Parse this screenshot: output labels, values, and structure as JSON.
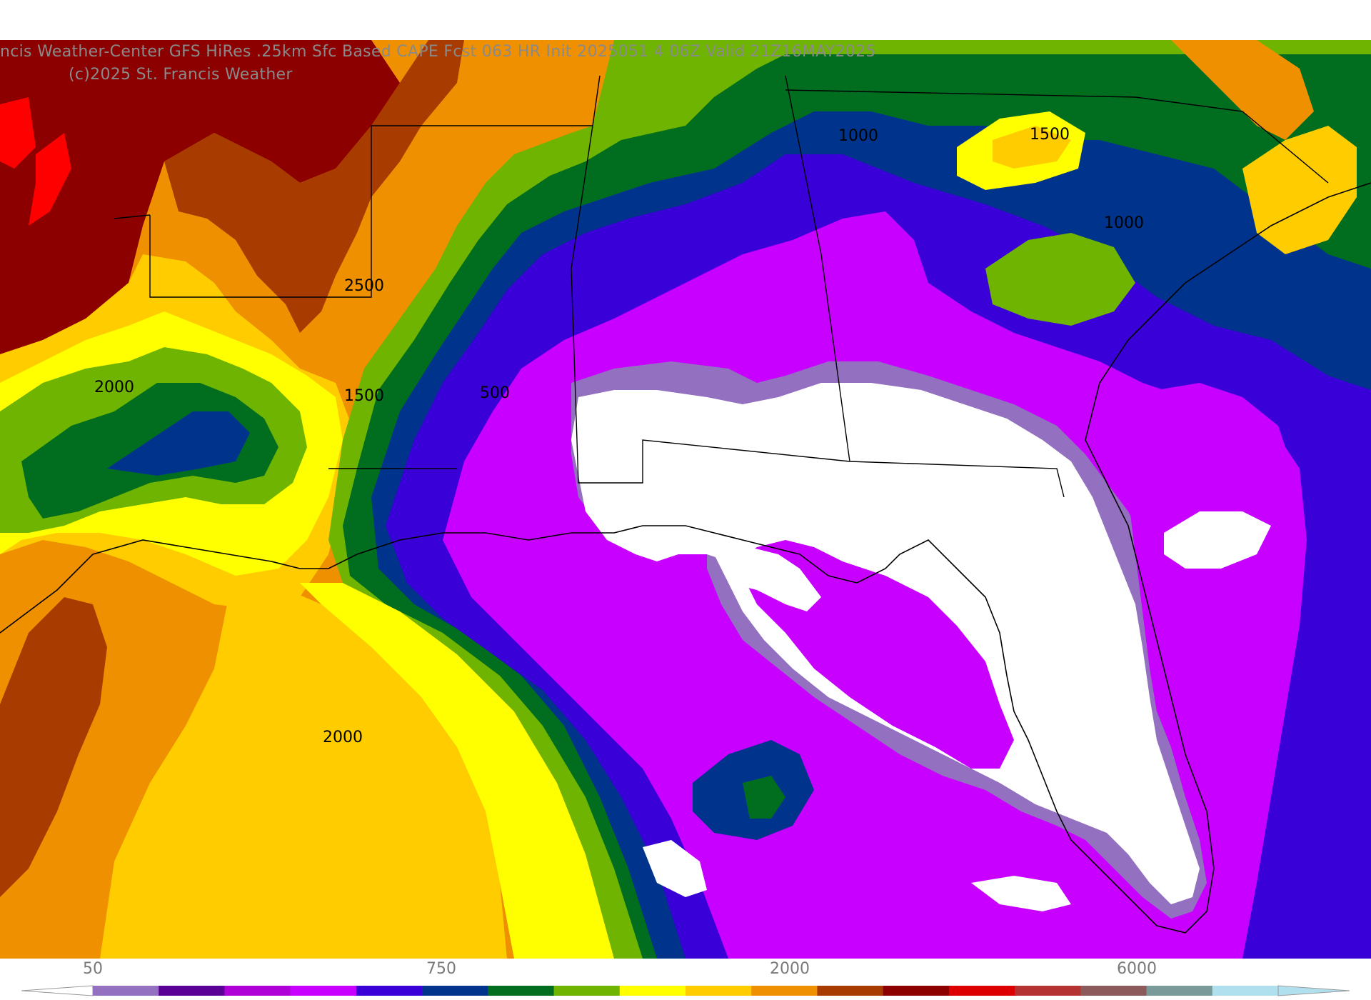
{
  "header": {
    "title": "ncis Weather-Center GFS HiRes .25km Sfc Based CAPE  Fcst 063 HR Init 2025051 4 06Z  Valid 21Z16MAY2025",
    "copyright": "(c)2025 St. Francis Weather"
  },
  "contour_labels": [
    {
      "id": "c1",
      "text": "2500"
    },
    {
      "id": "c2",
      "text": "2000"
    },
    {
      "id": "c3",
      "text": "1500"
    },
    {
      "id": "c4",
      "text": "500"
    },
    {
      "id": "c5",
      "text": "1000"
    },
    {
      "id": "c6",
      "text": "1500"
    },
    {
      "id": "c7",
      "text": "1000"
    },
    {
      "id": "c8",
      "text": "2000"
    }
  ],
  "colorbar": {
    "tick_labels": [
      "50",
      "750",
      "2000",
      "6000"
    ],
    "colors": [
      "#9370c0",
      "#5a0096",
      "#b000d8",
      "#c800ff",
      "#3a00d8",
      "#00348c",
      "#006e1e",
      "#6eb400",
      "#ffff00",
      "#ffcc00",
      "#ee9000",
      "#a83c00",
      "#8c0000",
      "#dc0000",
      "#b43232",
      "#8c5a5a",
      "#7a9a9a",
      "#b0e0ee"
    ]
  },
  "legend_colors": {
    "white": "#ffffff",
    "light_purple": "#9370c0",
    "magenta": "#c800ff",
    "blue": "#3a00d8",
    "navy": "#00348c",
    "dark_green": "#006e1e",
    "green": "#6eb400",
    "yellow": "#ffff00",
    "gold": "#ffcc00",
    "orange": "#ee9000",
    "brown": "#a83c00",
    "dark_red": "#8c0000",
    "red": "#ff0000"
  }
}
